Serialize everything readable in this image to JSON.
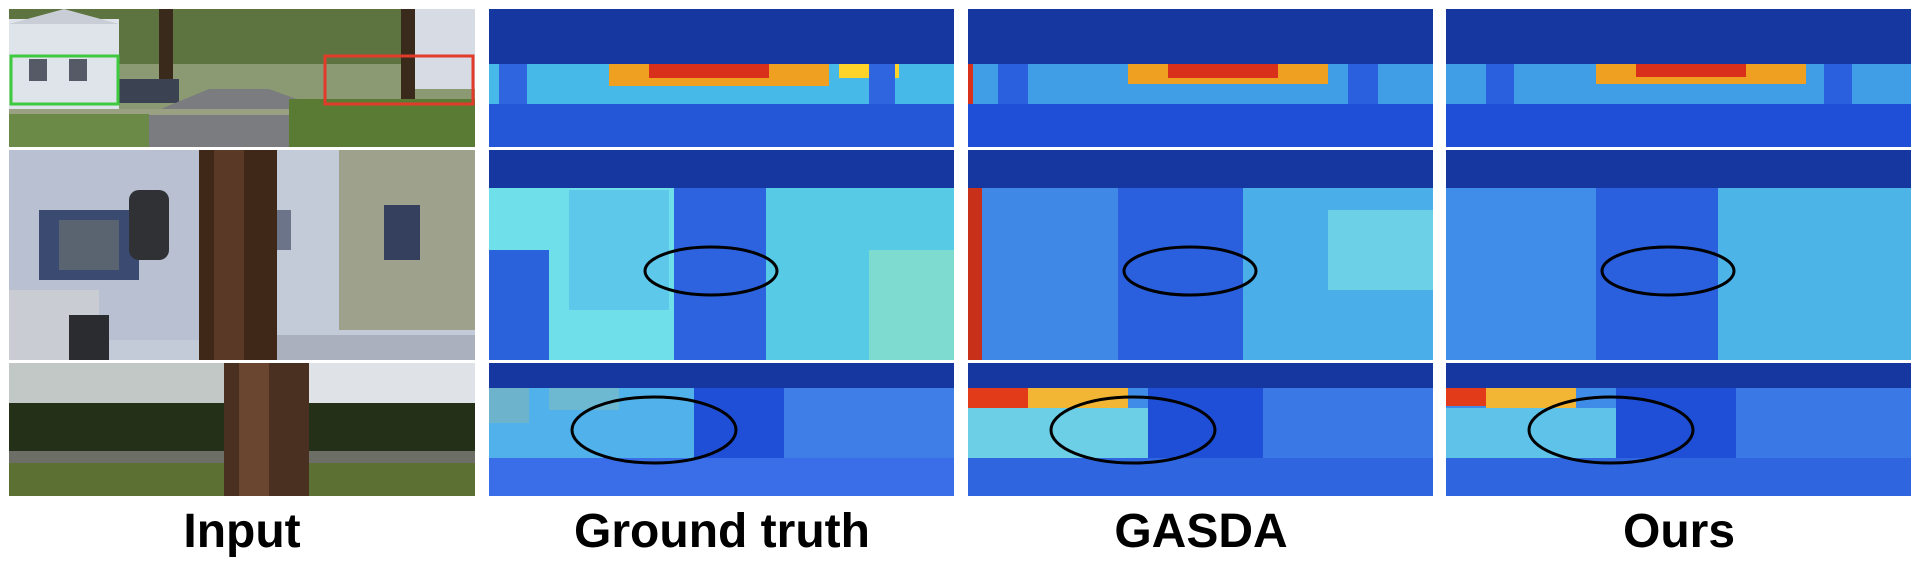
{
  "columns": [
    {
      "label": "Input"
    },
    {
      "label": "Ground truth"
    },
    {
      "label": "GASDA"
    },
    {
      "label": "Ours"
    }
  ],
  "rows": [
    {
      "content": "street scene with houses and trees, green and red boxes"
    },
    {
      "content": "zoomed crop of house facade and tree trunk"
    },
    {
      "content": "zoomed crop of hedge and tree trunk"
    }
  ],
  "colors": {
    "box_green": "#3ec93e",
    "box_red": "#e23b2a",
    "depth_sky": "#1737a0",
    "depth_far": "#3fa3e8",
    "depth_near": "#2a5fe0",
    "depth_hot": "#e64b1a",
    "ellipse": "#000000"
  }
}
